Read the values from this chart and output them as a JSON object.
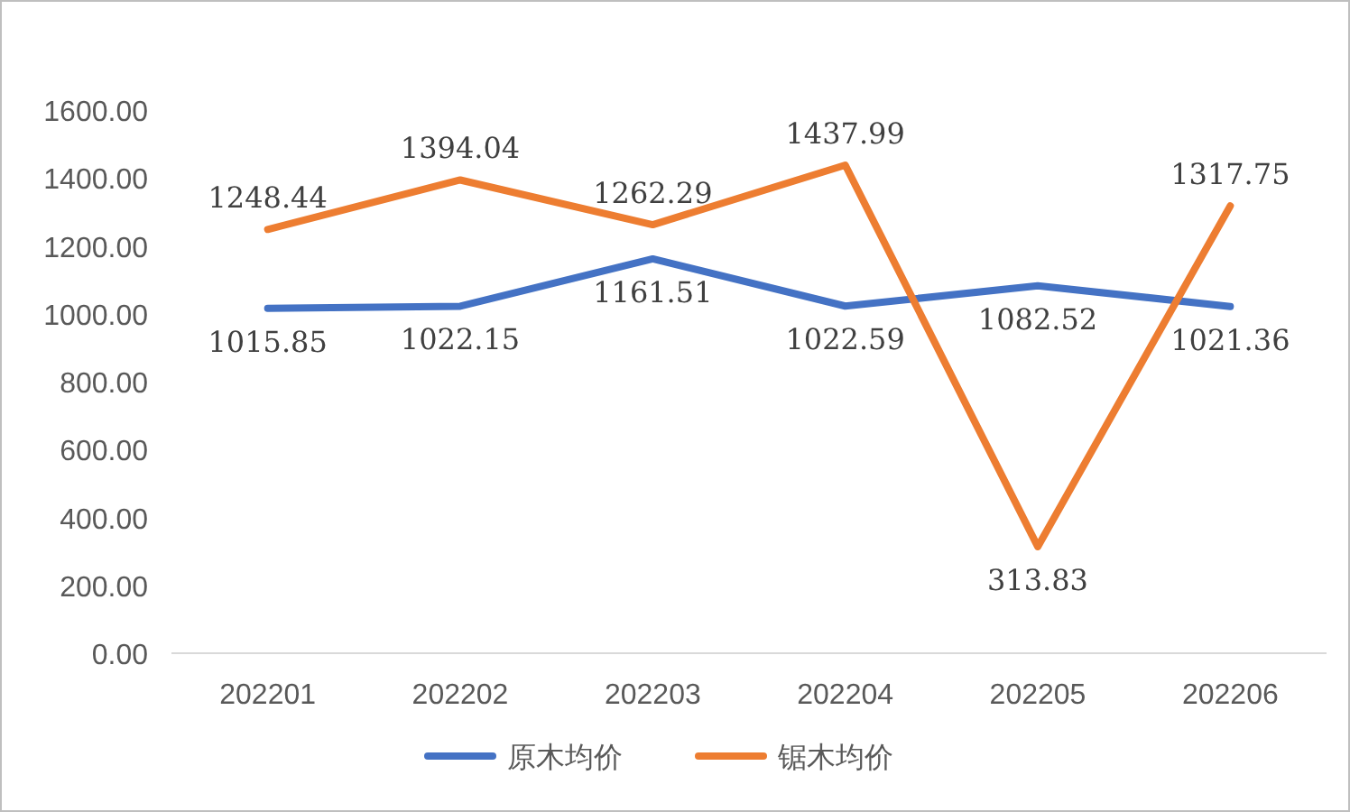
{
  "chart_data": {
    "type": "line",
    "categories": [
      "202201",
      "202202",
      "202203",
      "202204",
      "202205",
      "202206"
    ],
    "series": [
      {
        "name": "原木均价",
        "color": "#4472c4",
        "values": [
          1015.85,
          1022.15,
          1161.51,
          1022.59,
          1082.52,
          1021.36
        ]
      },
      {
        "name": "锯木均价",
        "color": "#ed7d31",
        "values": [
          1248.44,
          1394.04,
          1262.29,
          1437.99,
          313.83,
          1317.75
        ]
      }
    ],
    "ylim": [
      0,
      1600
    ],
    "yticks": [
      {
        "value": 0,
        "label": "0.00"
      },
      {
        "value": 200,
        "label": "200.00"
      },
      {
        "value": 400,
        "label": "400.00"
      },
      {
        "value": 600,
        "label": "600.00"
      },
      {
        "value": 800,
        "label": "800.00"
      },
      {
        "value": 1000,
        "label": "1000.00"
      },
      {
        "value": 1200,
        "label": "1200.00"
      },
      {
        "value": 1400,
        "label": "1400.00"
      },
      {
        "value": 1600,
        "label": "1600.00"
      }
    ],
    "data_labels": true,
    "legend": "bottom",
    "grid": false,
    "marker": "none",
    "line_style": "solid"
  }
}
